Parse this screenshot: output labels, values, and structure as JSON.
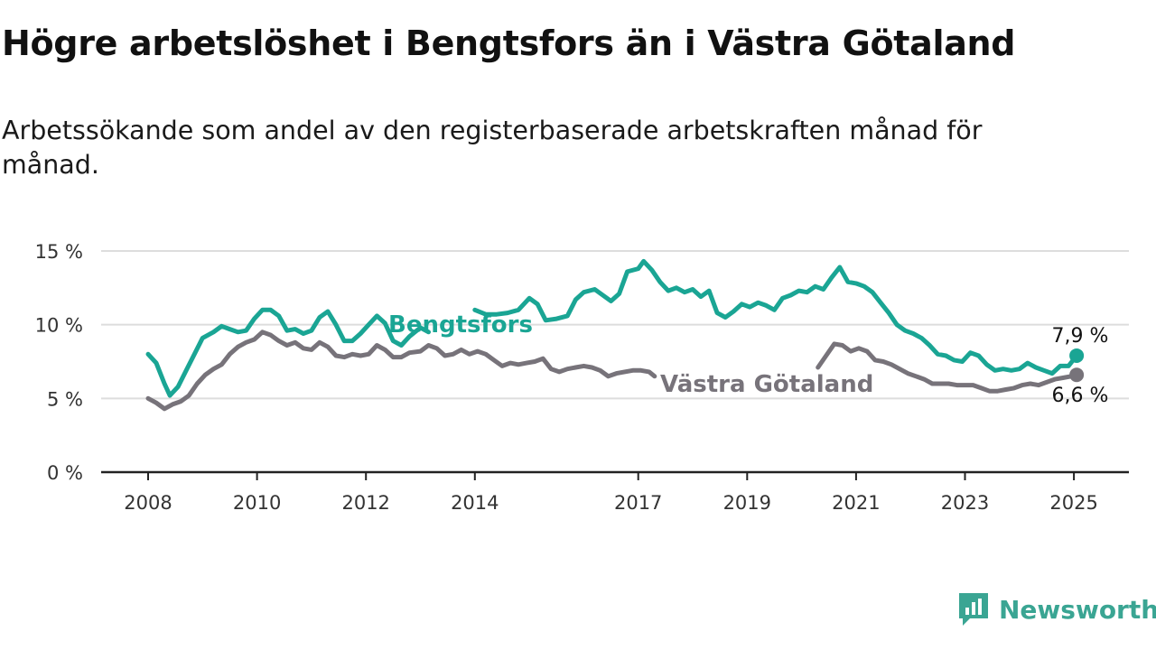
{
  "header": {
    "title": "Högre arbetslöshet i Bengtsfors än i Västra Götaland",
    "subtitle": "Arbetssökande som andel av den registerbaserade arbetskraften månad för månad."
  },
  "brand": {
    "name": "Newsworthy",
    "color": "#3aa593",
    "icon": "newsworthy-chart-icon"
  },
  "chart_data": {
    "type": "line",
    "ylim": [
      0,
      15
    ],
    "y_ticks": [
      0,
      5,
      10,
      15
    ],
    "y_tick_labels": [
      "0 %",
      "5 %",
      "10 %",
      "15 %"
    ],
    "x_ticks": [
      2008,
      2010,
      2012,
      2014,
      2017,
      2019,
      2021,
      2023,
      2025
    ],
    "x_tick_labels": [
      "2008",
      "2010",
      "2012",
      "2014",
      "2017",
      "2019",
      "2021",
      "2023",
      "2025"
    ],
    "xlim": [
      2007.2,
      2026
    ],
    "grid": true,
    "series": [
      {
        "name": "Bengtsfors",
        "color": "#1aa594",
        "end_label": "7,9 %",
        "points": [
          [
            2008.0,
            8.0
          ],
          [
            2008.15,
            7.4
          ],
          [
            2008.3,
            6.0
          ],
          [
            2008.4,
            5.2
          ],
          [
            2008.55,
            5.8
          ],
          [
            2008.7,
            6.9
          ],
          [
            2008.85,
            8.0
          ],
          [
            2009.0,
            9.1
          ],
          [
            2009.2,
            9.5
          ],
          [
            2009.35,
            9.9
          ],
          [
            2009.5,
            9.7
          ],
          [
            2009.65,
            9.5
          ],
          [
            2009.8,
            9.6
          ],
          [
            2009.95,
            10.4
          ],
          [
            2010.1,
            11.0
          ],
          [
            2010.25,
            11.0
          ],
          [
            2010.4,
            10.6
          ],
          [
            2010.55,
            9.6
          ],
          [
            2010.7,
            9.7
          ],
          [
            2010.85,
            9.4
          ],
          [
            2011.0,
            9.6
          ],
          [
            2011.15,
            10.5
          ],
          [
            2011.3,
            10.9
          ],
          [
            2011.45,
            10.0
          ],
          [
            2011.6,
            8.9
          ],
          [
            2011.75,
            8.9
          ],
          [
            2011.9,
            9.4
          ],
          [
            2012.05,
            10.0
          ],
          [
            2012.2,
            10.6
          ],
          [
            2012.35,
            10.1
          ],
          [
            2012.5,
            8.9
          ],
          [
            2012.65,
            8.6
          ],
          [
            2012.8,
            9.2
          ],
          [
            2013.0,
            9.8
          ],
          [
            2013.15,
            9.5
          ]
        ],
        "points_2": [
          [
            2014.0,
            11.0
          ],
          [
            2014.2,
            10.7
          ],
          [
            2014.4,
            10.7
          ],
          [
            2014.6,
            10.8
          ],
          [
            2014.8,
            11.0
          ],
          [
            2015.0,
            11.8
          ],
          [
            2015.15,
            11.4
          ],
          [
            2015.3,
            10.3
          ],
          [
            2015.5,
            10.4
          ],
          [
            2015.7,
            10.6
          ],
          [
            2015.85,
            11.7
          ],
          [
            2016.0,
            12.2
          ],
          [
            2016.2,
            12.4
          ],
          [
            2016.35,
            12.0
          ],
          [
            2016.5,
            11.6
          ],
          [
            2016.65,
            12.1
          ],
          [
            2016.8,
            13.6
          ],
          [
            2017.0,
            13.8
          ],
          [
            2017.1,
            14.3
          ],
          [
            2017.25,
            13.7
          ],
          [
            2017.4,
            12.9
          ],
          [
            2017.55,
            12.3
          ],
          [
            2017.7,
            12.5
          ],
          [
            2017.85,
            12.2
          ],
          [
            2018.0,
            12.4
          ],
          [
            2018.15,
            11.9
          ],
          [
            2018.3,
            12.3
          ],
          [
            2018.45,
            10.8
          ],
          [
            2018.6,
            10.5
          ],
          [
            2018.75,
            10.9
          ],
          [
            2018.9,
            11.4
          ],
          [
            2019.05,
            11.2
          ],
          [
            2019.2,
            11.5
          ],
          [
            2019.35,
            11.3
          ],
          [
            2019.5,
            11.0
          ],
          [
            2019.65,
            11.8
          ],
          [
            2019.8,
            12.0
          ],
          [
            2019.95,
            12.3
          ],
          [
            2020.1,
            12.2
          ],
          [
            2020.25,
            12.6
          ],
          [
            2020.4,
            12.4
          ],
          [
            2020.55,
            13.2
          ],
          [
            2020.7,
            13.9
          ],
          [
            2020.85,
            12.9
          ],
          [
            2021.0,
            12.8
          ],
          [
            2021.15,
            12.6
          ],
          [
            2021.3,
            12.2
          ],
          [
            2021.45,
            11.5
          ],
          [
            2021.6,
            10.8
          ],
          [
            2021.75,
            10.0
          ],
          [
            2021.9,
            9.6
          ],
          [
            2022.05,
            9.4
          ],
          [
            2022.2,
            9.1
          ],
          [
            2022.35,
            8.6
          ],
          [
            2022.5,
            8.0
          ],
          [
            2022.65,
            7.9
          ],
          [
            2022.8,
            7.6
          ],
          [
            2022.95,
            7.5
          ],
          [
            2023.1,
            8.1
          ],
          [
            2023.25,
            7.9
          ],
          [
            2023.4,
            7.3
          ],
          [
            2023.55,
            6.9
          ],
          [
            2023.7,
            7.0
          ],
          [
            2023.85,
            6.9
          ],
          [
            2024.0,
            7.0
          ],
          [
            2024.15,
            7.4
          ],
          [
            2024.3,
            7.1
          ],
          [
            2024.45,
            6.9
          ],
          [
            2024.6,
            6.7
          ],
          [
            2024.75,
            7.2
          ],
          [
            2024.9,
            7.2
          ],
          [
            2025.05,
            7.9
          ]
        ]
      },
      {
        "name": "Västra Götaland",
        "color": "#77737a",
        "end_label": "6,6 %",
        "points": [
          [
            2008.0,
            5.0
          ],
          [
            2008.15,
            4.7
          ],
          [
            2008.3,
            4.3
          ],
          [
            2008.45,
            4.6
          ],
          [
            2008.6,
            4.8
          ],
          [
            2008.75,
            5.2
          ],
          [
            2008.9,
            6.0
          ],
          [
            2009.05,
            6.6
          ],
          [
            2009.2,
            7.0
          ],
          [
            2009.35,
            7.3
          ],
          [
            2009.5,
            8.0
          ],
          [
            2009.65,
            8.5
          ],
          [
            2009.8,
            8.8
          ],
          [
            2009.95,
            9.0
          ],
          [
            2010.1,
            9.5
          ],
          [
            2010.25,
            9.3
          ],
          [
            2010.4,
            8.9
          ],
          [
            2010.55,
            8.6
          ],
          [
            2010.7,
            8.8
          ],
          [
            2010.85,
            8.4
          ],
          [
            2011.0,
            8.3
          ],
          [
            2011.15,
            8.8
          ],
          [
            2011.3,
            8.5
          ],
          [
            2011.45,
            7.9
          ],
          [
            2011.6,
            7.8
          ],
          [
            2011.75,
            8.0
          ],
          [
            2011.9,
            7.9
          ],
          [
            2012.05,
            8.0
          ],
          [
            2012.2,
            8.6
          ],
          [
            2012.35,
            8.3
          ],
          [
            2012.5,
            7.8
          ],
          [
            2012.65,
            7.8
          ],
          [
            2012.8,
            8.1
          ],
          [
            2013.0,
            8.2
          ],
          [
            2013.15,
            8.6
          ],
          [
            2013.3,
            8.4
          ],
          [
            2013.45,
            7.9
          ],
          [
            2013.6,
            8.0
          ],
          [
            2013.75,
            8.3
          ],
          [
            2013.9,
            8.0
          ],
          [
            2014.05,
            8.2
          ],
          [
            2014.2,
            8.0
          ],
          [
            2014.35,
            7.6
          ],
          [
            2014.5,
            7.2
          ],
          [
            2014.65,
            7.4
          ],
          [
            2014.8,
            7.3
          ],
          [
            2014.95,
            7.4
          ],
          [
            2015.1,
            7.5
          ],
          [
            2015.25,
            7.7
          ],
          [
            2015.4,
            7.0
          ],
          [
            2015.55,
            6.8
          ],
          [
            2015.7,
            7.0
          ],
          [
            2015.85,
            7.1
          ],
          [
            2016.0,
            7.2
          ],
          [
            2016.15,
            7.1
          ],
          [
            2016.3,
            6.9
          ],
          [
            2016.45,
            6.5
          ],
          [
            2016.6,
            6.7
          ],
          [
            2016.75,
            6.8
          ],
          [
            2016.9,
            6.9
          ],
          [
            2017.05,
            6.9
          ],
          [
            2017.2,
            6.8
          ],
          [
            2017.3,
            6.5
          ]
        ],
        "points_2": [
          [
            2020.3,
            7.1
          ],
          [
            2020.45,
            7.9
          ],
          [
            2020.6,
            8.7
          ],
          [
            2020.75,
            8.6
          ],
          [
            2020.9,
            8.2
          ],
          [
            2021.05,
            8.4
          ],
          [
            2021.2,
            8.2
          ],
          [
            2021.35,
            7.6
          ],
          [
            2021.5,
            7.5
          ],
          [
            2021.65,
            7.3
          ],
          [
            2021.8,
            7.0
          ],
          [
            2021.95,
            6.7
          ],
          [
            2022.1,
            6.5
          ],
          [
            2022.25,
            6.3
          ],
          [
            2022.4,
            6.0
          ],
          [
            2022.55,
            6.0
          ],
          [
            2022.7,
            6.0
          ],
          [
            2022.85,
            5.9
          ],
          [
            2023.0,
            5.9
          ],
          [
            2023.15,
            5.9
          ],
          [
            2023.3,
            5.7
          ],
          [
            2023.45,
            5.5
          ],
          [
            2023.6,
            5.5
          ],
          [
            2023.75,
            5.6
          ],
          [
            2023.9,
            5.7
          ],
          [
            2024.05,
            5.9
          ],
          [
            2024.2,
            6.0
          ],
          [
            2024.35,
            5.9
          ],
          [
            2024.5,
            6.1
          ],
          [
            2024.65,
            6.3
          ],
          [
            2024.8,
            6.4
          ],
          [
            2024.95,
            6.5
          ],
          [
            2025.05,
            6.6
          ]
        ]
      }
    ]
  }
}
